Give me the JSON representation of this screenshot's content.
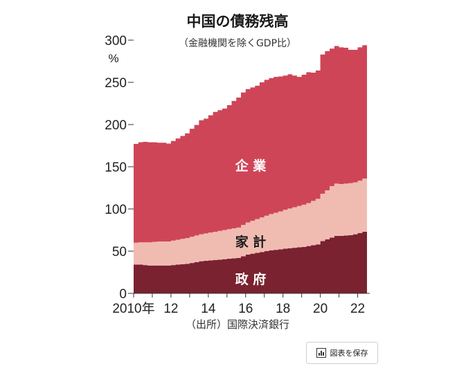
{
  "chart_data": {
    "type": "area",
    "title": "中国の債務残高",
    "subtitle": "（金融機関を除くGDP比）",
    "unit_label": "%",
    "source": "（出所）国際決済銀行",
    "stacked": true,
    "ylim": [
      0,
      300
    ],
    "yticks": [
      "0",
      "50",
      "100",
      "150",
      "200",
      "250",
      "300"
    ],
    "x_tick_labels": [
      {
        "label": "2010年",
        "x": 2010.0
      },
      {
        "label": "12",
        "x": 2012.0
      },
      {
        "label": "14",
        "x": 2014.0
      },
      {
        "label": "16",
        "x": 2016.0
      },
      {
        "label": "18",
        "x": 2018.0
      },
      {
        "label": "20",
        "x": 2020.0
      },
      {
        "label": "22",
        "x": 2022.0
      }
    ],
    "x": [
      2010.0,
      2010.25,
      2010.5,
      2010.75,
      2011.0,
      2011.25,
      2011.5,
      2011.75,
      2012.0,
      2012.25,
      2012.5,
      2012.75,
      2013.0,
      2013.25,
      2013.5,
      2013.75,
      2014.0,
      2014.25,
      2014.5,
      2014.75,
      2015.0,
      2015.25,
      2015.5,
      2015.75,
      2016.0,
      2016.25,
      2016.5,
      2016.75,
      2017.0,
      2017.25,
      2017.5,
      2017.75,
      2018.0,
      2018.25,
      2018.5,
      2018.75,
      2019.0,
      2019.25,
      2019.5,
      2019.75,
      2020.0,
      2020.25,
      2020.5,
      2020.75,
      2021.0,
      2021.25,
      2021.5,
      2021.75,
      2022.0,
      2022.25
    ],
    "series": [
      {
        "name": "政府",
        "color": "#7a2230",
        "values": [
          34,
          34,
          33.5,
          33,
          33,
          33,
          33,
          33,
          33.5,
          34,
          34.5,
          35,
          36,
          37,
          38,
          38.5,
          39,
          39.5,
          40,
          40.5,
          41,
          41.5,
          42,
          44,
          46,
          47,
          48,
          49,
          50,
          51,
          51.5,
          52,
          53,
          53.5,
          54,
          54.5,
          55,
          56,
          57,
          58,
          62,
          64,
          66,
          68,
          68,
          68.5,
          69,
          70,
          71.5,
          73
        ]
      },
      {
        "name": "家計",
        "color": "#f0bcb2",
        "values": [
          26,
          26.5,
          27,
          27.5,
          28,
          28.5,
          28.5,
          28.5,
          29,
          29.5,
          30,
          30.5,
          31,
          31.5,
          32,
          32.5,
          33,
          33.5,
          34,
          34.5,
          35,
          35.5,
          36,
          37,
          38,
          39,
          40,
          41,
          42,
          43,
          44,
          45,
          46,
          47,
          48,
          49,
          50,
          51,
          52.5,
          54,
          56,
          58,
          61,
          62,
          61.5,
          61.5,
          61.5,
          61.5,
          62,
          63
        ]
      },
      {
        "name": "企業",
        "color": "#cf4558",
        "values": [
          117,
          118.5,
          119,
          118.5,
          118,
          117,
          117,
          116,
          118,
          120,
          122,
          124,
          128,
          131,
          135,
          136,
          139,
          142,
          143,
          144,
          147,
          151,
          154,
          157,
          158,
          158,
          158,
          160,
          161,
          161,
          161,
          160,
          159,
          159,
          156,
          153,
          154,
          155,
          152,
          152,
          165,
          165,
          163,
          163,
          162,
          161,
          158,
          157,
          158,
          158
        ]
      }
    ],
    "series_labels": [
      "企 業",
      "家 計",
      "政 府"
    ]
  },
  "ui": {
    "save_button_label": "図表を保存",
    "save_icon": "bar-chart-icon"
  }
}
